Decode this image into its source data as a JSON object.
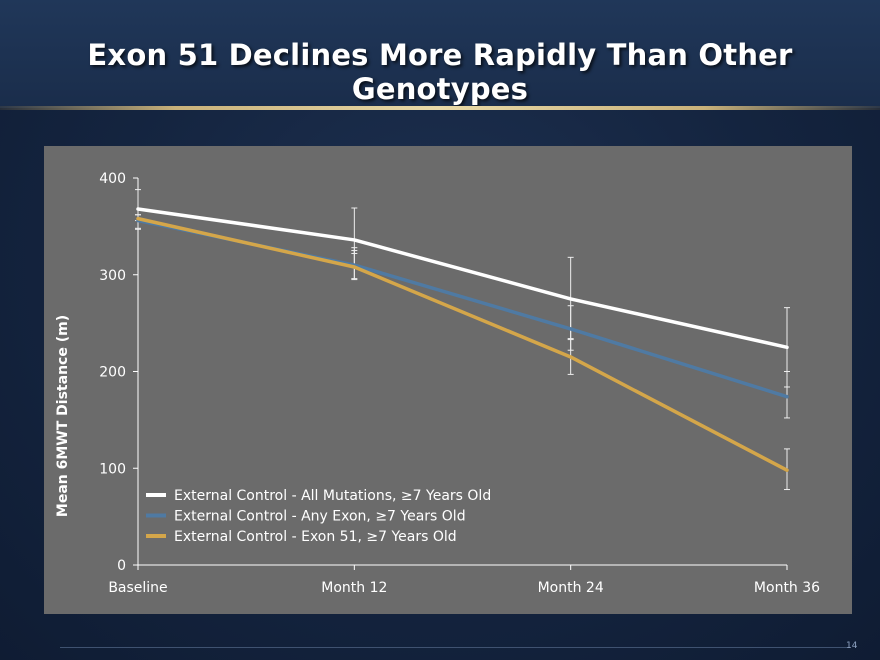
{
  "slide": {
    "title": "Exon 51 Declines More Rapidly Than Other Genotypes",
    "page_number": "14"
  },
  "colors": {
    "panel_bg": "#6b6b6b",
    "all_mutations": "#ffffff",
    "any_exon": "#4f7aa3",
    "exon51": "#d4a64a"
  },
  "chart_data": {
    "type": "line",
    "title": "",
    "xlabel": "",
    "ylabel": "Mean 6MWT Distance (m)",
    "ylim": [
      0,
      400
    ],
    "yticks": [
      0,
      100,
      200,
      300,
      400
    ],
    "categories": [
      "Baseline",
      "Month 12",
      "Month 24",
      "Month 36"
    ],
    "series": [
      {
        "name": "External Control - All Mutations, ≥7 Years Old",
        "color": "#ffffff",
        "values": [
          368,
          336,
          275,
          225
        ],
        "err_low": [
          356,
          322,
          233,
          184
        ],
        "err_high": [
          388,
          369,
          318,
          266
        ]
      },
      {
        "name": "External Control - Any Exon, ≥7 Years Old",
        "color": "#4f7aa3",
        "values": [
          356,
          310,
          244,
          174
        ],
        "err_low": [
          347,
          296,
          222,
          152
        ],
        "err_high": [
          362,
          328,
          268,
          200
        ]
      },
      {
        "name": "External Control - Exon 51, ≥7 Years Old",
        "color": "#d4a64a",
        "values": [
          358,
          308,
          215,
          98
        ],
        "err_low": [
          348,
          295,
          197,
          78
        ],
        "err_high": [
          362,
          325,
          234,
          120
        ]
      }
    ],
    "legend_position": "bottom-left"
  }
}
